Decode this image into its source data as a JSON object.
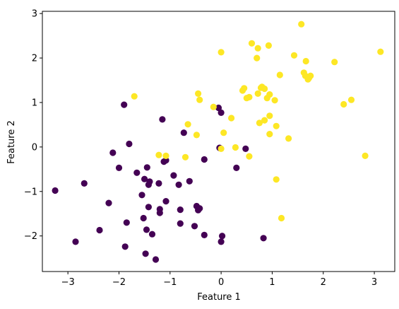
{
  "chart_data": {
    "type": "scatter",
    "xlabel": "Feature 1",
    "ylabel": "Feature 2",
    "xlim": [
      -3.5,
      3.4
    ],
    "ylim": [
      -2.8,
      3.05
    ],
    "xticks": [
      -3,
      -2,
      -1,
      0,
      1,
      2,
      3
    ],
    "yticks": [
      -2,
      -1,
      0,
      1,
      2,
      3
    ],
    "grid": false,
    "series": [
      {
        "color": "#440154",
        "points": [
          [
            -3.25,
            -0.98
          ],
          [
            -2.85,
            -2.13
          ],
          [
            -2.68,
            -0.82
          ],
          [
            -2.38,
            -1.87
          ],
          [
            -2.2,
            -1.26
          ],
          [
            -2.12,
            -0.13
          ],
          [
            -2.0,
            -0.47
          ],
          [
            -1.9,
            0.95
          ],
          [
            -1.88,
            -2.24
          ],
          [
            -1.85,
            -1.7
          ],
          [
            -1.8,
            0.07
          ],
          [
            -1.65,
            -0.58
          ],
          [
            -1.55,
            -1.08
          ],
          [
            -1.52,
            -1.6
          ],
          [
            -1.5,
            -0.72
          ],
          [
            -1.48,
            -2.4
          ],
          [
            -1.46,
            -1.86
          ],
          [
            -1.45,
            -0.46
          ],
          [
            -1.42,
            -0.85
          ],
          [
            -1.42,
            -1.35
          ],
          [
            -1.4,
            -0.78
          ],
          [
            -1.35,
            -1.96
          ],
          [
            -1.28,
            -2.53
          ],
          [
            -1.22,
            -0.82
          ],
          [
            -1.2,
            -1.48
          ],
          [
            -1.2,
            -1.4
          ],
          [
            -1.15,
            0.62
          ],
          [
            -1.12,
            -0.33
          ],
          [
            -1.08,
            -0.3
          ],
          [
            -1.08,
            -1.22
          ],
          [
            -0.93,
            -0.64
          ],
          [
            -0.83,
            -0.85
          ],
          [
            -0.8,
            -1.72
          ],
          [
            -0.8,
            -1.41
          ],
          [
            -0.73,
            0.32
          ],
          [
            -0.62,
            -0.77
          ],
          [
            -0.52,
            -1.78
          ],
          [
            -0.48,
            -1.33
          ],
          [
            -0.45,
            -1.42
          ],
          [
            -0.42,
            -1.38
          ],
          [
            -0.33,
            -0.28
          ],
          [
            -0.33,
            -1.98
          ],
          [
            -0.05,
            0.88
          ],
          [
            0.0,
            0.77
          ],
          [
            -0.03,
            -0.02
          ],
          [
            0.0,
            -2.13
          ],
          [
            0.02,
            -2.0
          ],
          [
            0.3,
            -0.47
          ],
          [
            0.48,
            -0.04
          ],
          [
            0.83,
            -2.05
          ]
        ]
      },
      {
        "color": "#fde725",
        "points": [
          [
            -1.7,
            1.14
          ],
          [
            -1.22,
            -0.18
          ],
          [
            -1.08,
            -0.2
          ],
          [
            -0.7,
            -0.23
          ],
          [
            -0.65,
            0.51
          ],
          [
            -0.45,
            1.2
          ],
          [
            -0.42,
            1.06
          ],
          [
            -0.48,
            0.27
          ],
          [
            -0.15,
            0.9
          ],
          [
            0.0,
            2.13
          ],
          [
            0.0,
            -0.04
          ],
          [
            0.05,
            0.32
          ],
          [
            0.2,
            0.65
          ],
          [
            0.28,
            -0.01
          ],
          [
            0.42,
            1.27
          ],
          [
            0.45,
            1.32
          ],
          [
            0.5,
            1.1
          ],
          [
            0.55,
            1.12
          ],
          [
            0.55,
            -0.21
          ],
          [
            0.6,
            2.33
          ],
          [
            0.7,
            2.0
          ],
          [
            0.72,
            2.22
          ],
          [
            0.72,
            1.2
          ],
          [
            0.75,
            0.54
          ],
          [
            0.78,
            1.33
          ],
          [
            0.8,
            1.35
          ],
          [
            0.85,
            1.31
          ],
          [
            0.85,
            0.6
          ],
          [
            0.9,
            1.1
          ],
          [
            0.93,
            2.28
          ],
          [
            0.95,
            1.18
          ],
          [
            0.95,
            0.7
          ],
          [
            0.95,
            0.29
          ],
          [
            1.05,
            1.05
          ],
          [
            1.08,
            0.47
          ],
          [
            1.08,
            -0.73
          ],
          [
            1.15,
            1.62
          ],
          [
            1.18,
            -1.6
          ],
          [
            1.32,
            0.19
          ],
          [
            1.43,
            2.06
          ],
          [
            1.57,
            2.76
          ],
          [
            1.62,
            1.67
          ],
          [
            1.65,
            1.6
          ],
          [
            1.66,
            1.93
          ],
          [
            1.7,
            1.52
          ],
          [
            1.72,
            1.55
          ],
          [
            1.75,
            1.6
          ],
          [
            2.22,
            1.91
          ],
          [
            2.4,
            0.96
          ],
          [
            2.55,
            1.06
          ],
          [
            2.82,
            -0.2
          ],
          [
            3.12,
            2.14
          ]
        ]
      }
    ]
  }
}
